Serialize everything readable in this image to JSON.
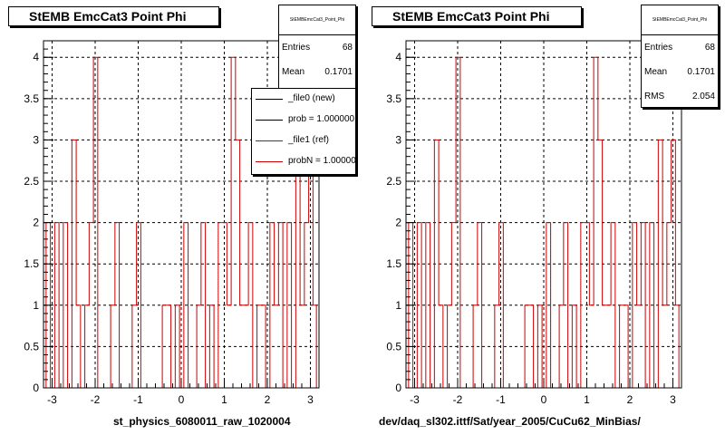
{
  "colors": {
    "ref": "#cc0000",
    "new": "#000000",
    "grid": "#000000"
  },
  "chart_data": [
    {
      "type": "histogram",
      "title": "StEMB EmcCat3 Point Phi",
      "xlabel": "st_physics_6080011_raw_1020004",
      "ylabel": "",
      "xlim": [
        -3.2,
        3.2
      ],
      "ylim": [
        0,
        4.2
      ],
      "x_ticks": [
        -3,
        -2,
        -1,
        0,
        1,
        2,
        3
      ],
      "y_ticks": [
        0,
        0.5,
        1,
        1.5,
        2,
        2.5,
        3,
        3.5,
        4
      ],
      "y_tick_labels": [
        "0",
        "0.5",
        "1",
        "1.5",
        "2",
        "2.5",
        "3",
        "3.5",
        "4"
      ],
      "grid": true,
      "stats": {
        "name": "StEMBEmcCat3_Point_Phi",
        "entries": "68",
        "mean": "0.1701",
        "rms": ""
      },
      "stats_labels": {
        "entries": "Entries",
        "mean": "Mean",
        "rms": ""
      },
      "legend": {
        "placement": "top-right",
        "entries": [
          {
            "label": "_file0 (new)",
            "color": "#000000"
          },
          {
            "label": "prob = 1.000000",
            "color": "#000000"
          },
          {
            "label": "_file1 (ref)",
            "color": "#cc0000"
          },
          {
            "label": "probN = 1.000000",
            "color": "#cc0000"
          }
        ]
      },
      "series": [
        {
          "name": "_file1 (ref)",
          "color": "#cc0000",
          "bin_edges": [
            -3.14,
            -3.04,
            -2.94,
            -2.84,
            -2.74,
            -2.64,
            -2.54,
            -2.44,
            -2.34,
            -2.24,
            -2.14,
            -2.04,
            -1.94,
            -1.84,
            -1.74,
            -1.64,
            -1.54,
            -1.44,
            -1.34,
            -1.24,
            -1.14,
            -1.04,
            -0.94,
            -0.84,
            -0.74,
            -0.64,
            -0.54,
            -0.44,
            -0.34,
            -0.24,
            -0.14,
            -0.04,
            0.06,
            0.16,
            0.26,
            0.36,
            0.46,
            0.56,
            0.66,
            0.76,
            0.86,
            0.96,
            1.06,
            1.16,
            1.26,
            1.36,
            1.46,
            1.56,
            1.66,
            1.76,
            1.86,
            1.96,
            2.06,
            2.16,
            2.26,
            2.36,
            2.46,
            2.56,
            2.66,
            2.76,
            2.86,
            2.96,
            3.06,
            3.14
          ],
          "values": [
            2,
            0,
            2,
            0,
            2,
            0,
            3,
            1,
            0,
            1,
            2,
            4,
            0,
            0,
            0,
            1,
            2,
            0,
            0,
            0,
            1,
            2,
            0,
            0,
            0,
            0,
            0,
            1,
            1,
            0,
            1,
            0,
            2,
            0,
            0,
            1,
            2,
            0,
            1,
            0,
            2,
            2,
            1,
            4,
            3,
            1,
            1,
            2,
            0,
            1,
            1,
            0,
            2,
            1,
            2,
            0,
            2,
            0,
            3,
            1,
            2,
            3,
            1
          ]
        }
      ]
    },
    {
      "type": "histogram",
      "title": "StEMB EmcCat3 Point Phi",
      "xlabel": "dev/daq_sl302.ittf/Sat/year_2005/CuCu62_MinBias/",
      "ylabel": "",
      "xlim": [
        -3.2,
        3.2
      ],
      "ylim": [
        0,
        4.2
      ],
      "x_ticks": [
        -3,
        -2,
        -1,
        0,
        1,
        2,
        3
      ],
      "y_ticks": [
        0,
        0.5,
        1,
        1.5,
        2,
        2.5,
        3,
        3.5,
        4
      ],
      "y_tick_labels": [
        "0",
        "0.5",
        "1",
        "1.5",
        "2",
        "2.5",
        "3",
        "3.5",
        "4"
      ],
      "grid": true,
      "stats": {
        "name": "StEMBEmcCat3_Point_Phi",
        "entries": "68",
        "mean": "0.1701",
        "rms": "2.054"
      },
      "stats_labels": {
        "entries": "Entries",
        "mean": "Mean",
        "rms": "RMS"
      },
      "series": [
        {
          "name": "_file1 (ref)",
          "color": "#cc0000",
          "bin_edges": [
            -3.14,
            -3.04,
            -2.94,
            -2.84,
            -2.74,
            -2.64,
            -2.54,
            -2.44,
            -2.34,
            -2.24,
            -2.14,
            -2.04,
            -1.94,
            -1.84,
            -1.74,
            -1.64,
            -1.54,
            -1.44,
            -1.34,
            -1.24,
            -1.14,
            -1.04,
            -0.94,
            -0.84,
            -0.74,
            -0.64,
            -0.54,
            -0.44,
            -0.34,
            -0.24,
            -0.14,
            -0.04,
            0.06,
            0.16,
            0.26,
            0.36,
            0.46,
            0.56,
            0.66,
            0.76,
            0.86,
            0.96,
            1.06,
            1.16,
            1.26,
            1.36,
            1.46,
            1.56,
            1.66,
            1.76,
            1.86,
            1.96,
            2.06,
            2.16,
            2.26,
            2.36,
            2.46,
            2.56,
            2.66,
            2.76,
            2.86,
            2.96,
            3.06,
            3.14
          ],
          "values": [
            2,
            0,
            2,
            0,
            2,
            0,
            3,
            1,
            0,
            1,
            2,
            4,
            0,
            0,
            0,
            1,
            2,
            0,
            0,
            0,
            1,
            2,
            0,
            0,
            0,
            0,
            0,
            1,
            1,
            0,
            1,
            0,
            2,
            0,
            0,
            1,
            2,
            0,
            1,
            0,
            2,
            2,
            1,
            4,
            3,
            1,
            1,
            2,
            0,
            1,
            1,
            0,
            2,
            1,
            2,
            0,
            2,
            0,
            3,
            1,
            2,
            3,
            1
          ]
        }
      ]
    }
  ]
}
